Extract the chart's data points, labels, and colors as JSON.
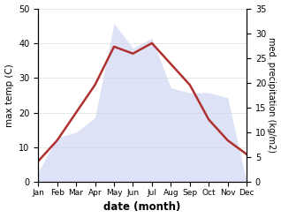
{
  "months": [
    "Jan",
    "Feb",
    "Mar",
    "Apr",
    "May",
    "Jun",
    "Jul",
    "Aug",
    "Sep",
    "Oct",
    "Nov",
    "Dec"
  ],
  "temperature": [
    6,
    12,
    20,
    28,
    39,
    37,
    40,
    34,
    28,
    18,
    12,
    8
  ],
  "precipitation": [
    2,
    9,
    10,
    13,
    32,
    27,
    29,
    19,
    18,
    18,
    17,
    0
  ],
  "temp_color": "#b03030",
  "precip_fill_color": "#c8d0f0",
  "left_ylim": [
    0,
    50
  ],
  "right_ylim": [
    0,
    35
  ],
  "left_yticks": [
    0,
    10,
    20,
    30,
    40,
    50
  ],
  "right_yticks": [
    0,
    5,
    10,
    15,
    20,
    25,
    30,
    35
  ],
  "left_ylabel": "max temp (C)",
  "right_ylabel": "med. precipitation (kg/m2)",
  "xlabel": "date (month)",
  "line_width": 1.8,
  "fill_alpha": 0.6
}
